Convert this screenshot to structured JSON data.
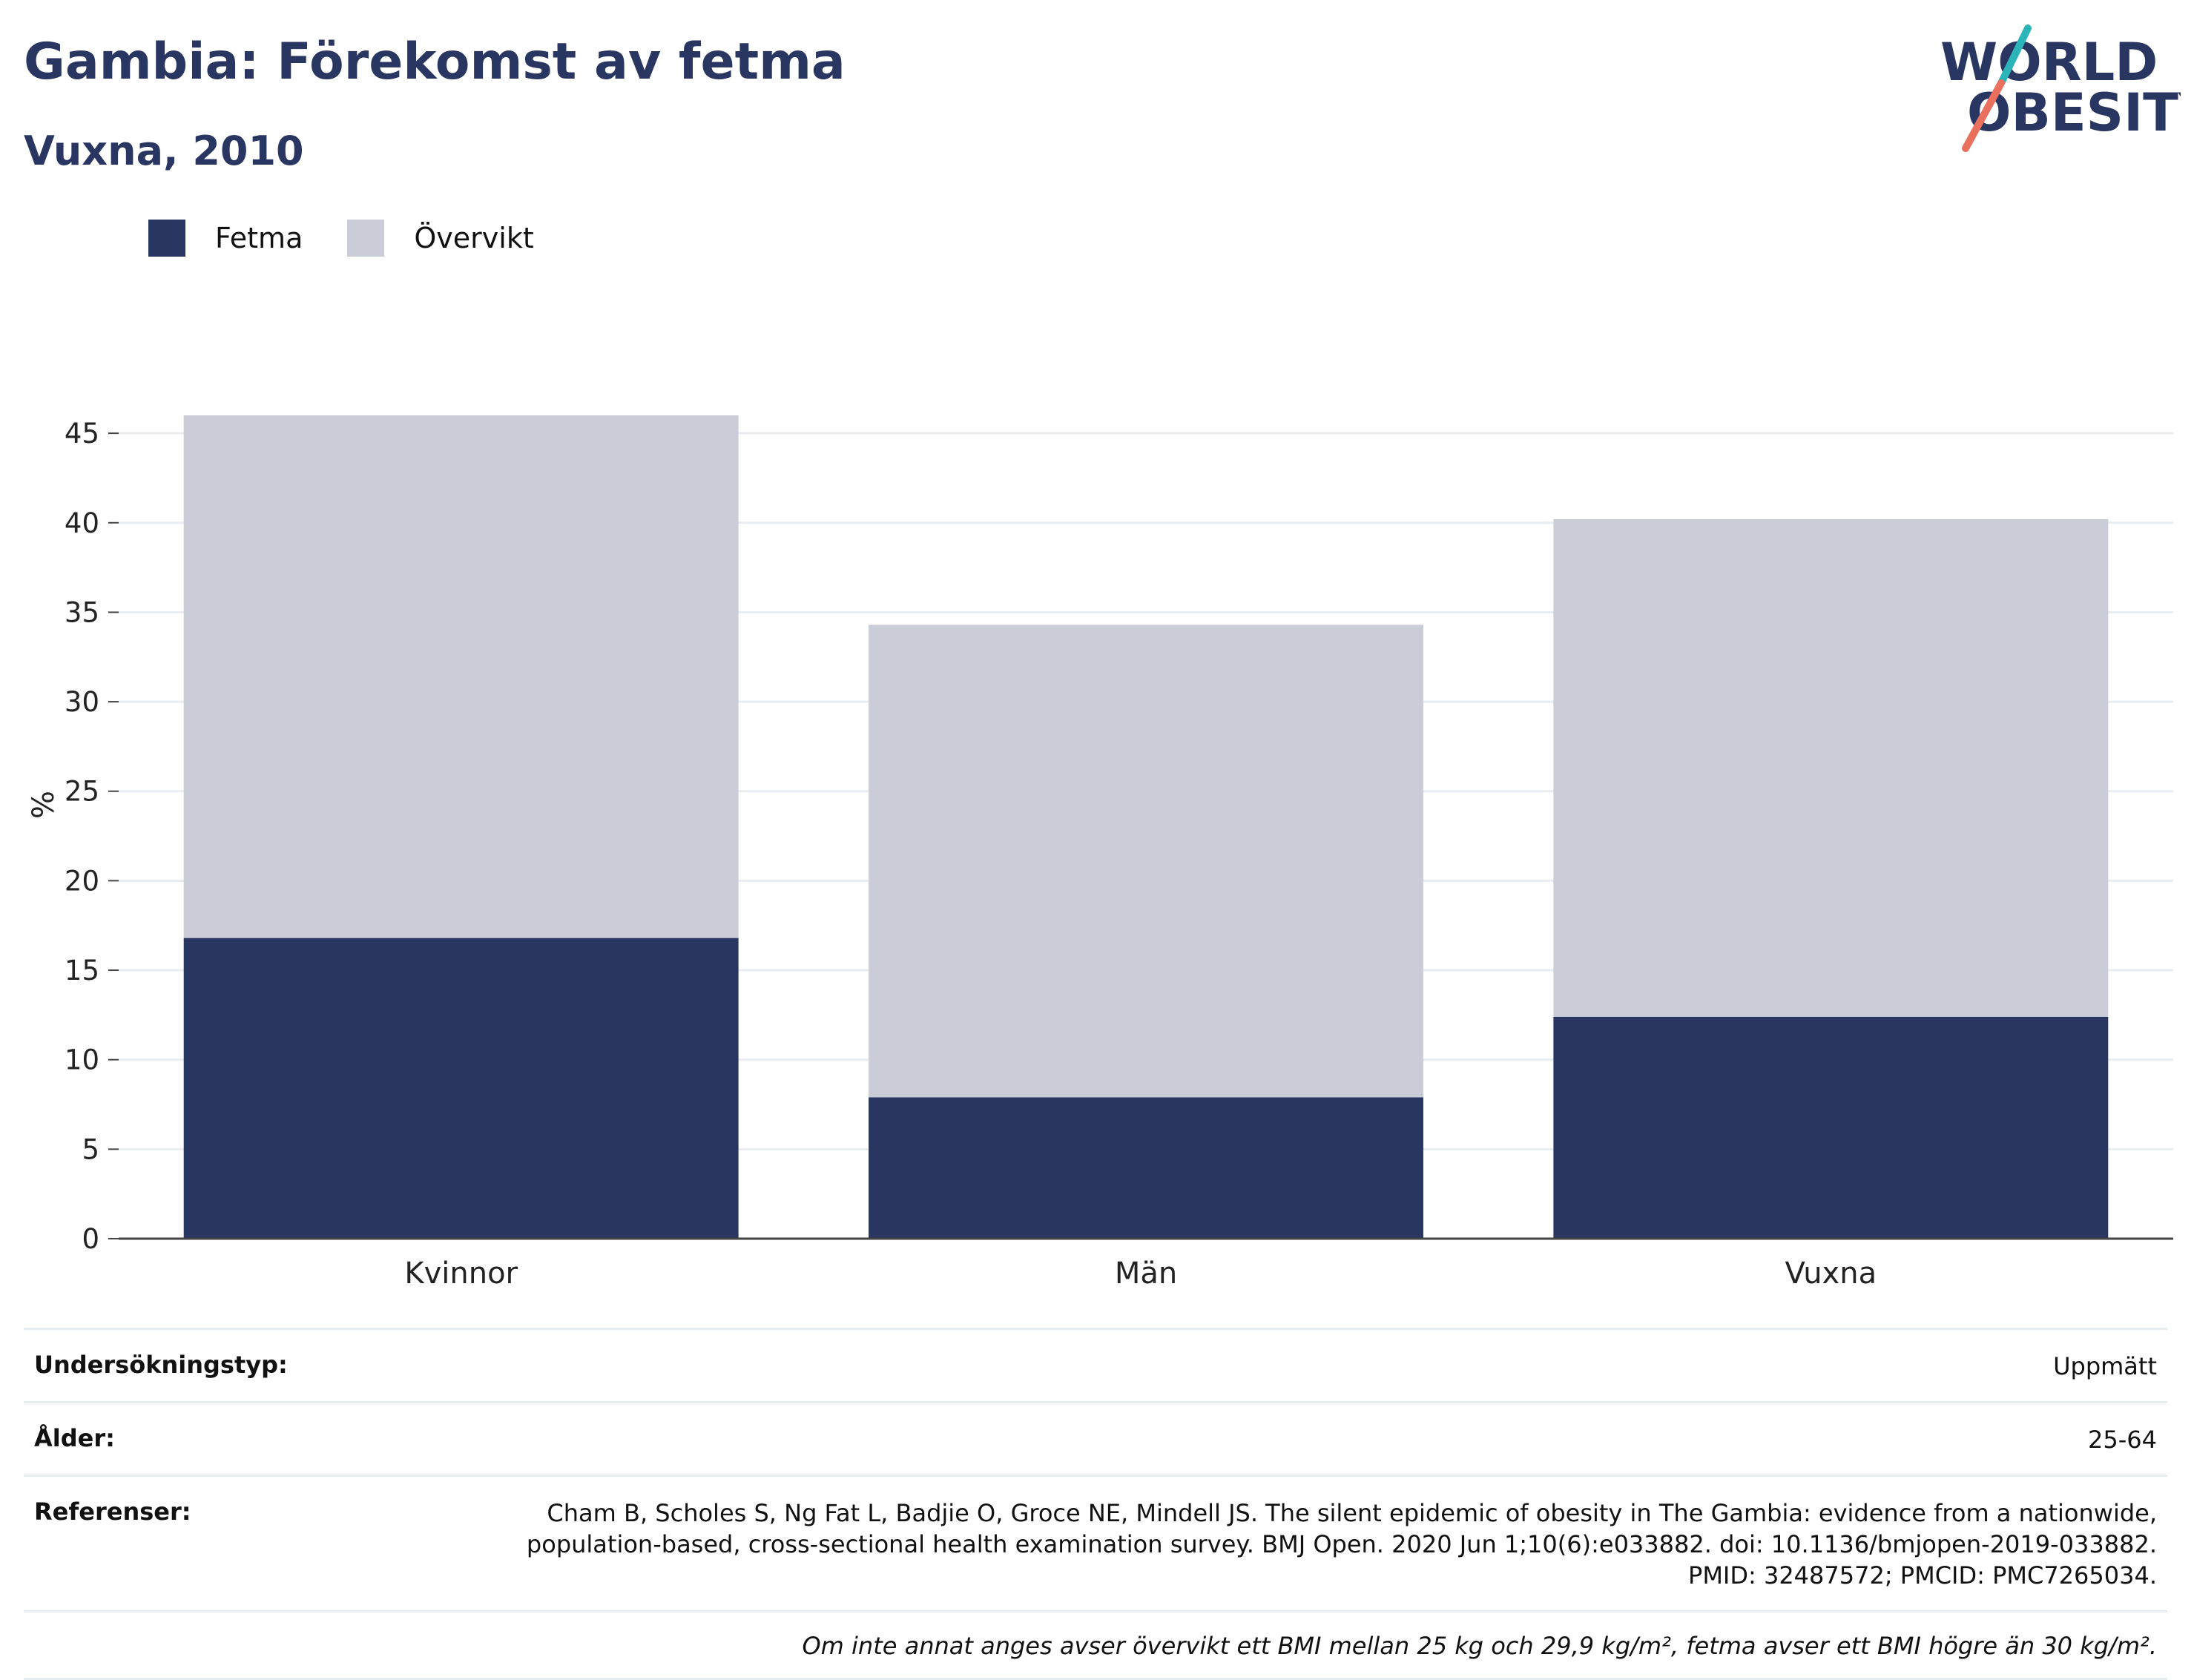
{
  "header": {
    "title": "Gambia: Förekomst av fetma",
    "subtitle": "Vuxna, 2010"
  },
  "logo": {
    "line1": "WORLD",
    "line2": "OBESITY",
    "colors": {
      "text": "#2a3662",
      "slash_top": "#2bb5b8",
      "slash_bottom": "#e8705d"
    }
  },
  "legend": {
    "items": [
      {
        "label": "Fetma",
        "color": "#2a3662"
      },
      {
        "label": "Övervikt",
        "color": "#cacdd8"
      }
    ]
  },
  "chart_data": {
    "type": "bar",
    "stacked": true,
    "categories": [
      "Kvinnor",
      "Män",
      "Vuxna"
    ],
    "series": [
      {
        "name": "Fetma",
        "color": "#2a3662",
        "values": [
          16.8,
          7.9,
          12.4
        ]
      },
      {
        "name": "Övervikt",
        "color": "#cacdd8",
        "values": [
          29.2,
          26.4,
          27.8
        ]
      }
    ],
    "ylabel": "%",
    "ylim": [
      0,
      46
    ],
    "yticks": [
      0,
      5,
      10,
      15,
      20,
      25,
      30,
      35,
      40,
      45
    ],
    "grid": true,
    "legend_position": "top-left"
  },
  "info": {
    "survey_type_label": "Undersökningstyp:",
    "survey_type_value": "Uppmätt",
    "age_label": "Ålder:",
    "age_value": "25-64",
    "references_label": "Referenser:",
    "references_value": "Cham B, Scholes S, Ng Fat L, Badjie O, Groce NE, Mindell JS. The silent epidemic of obesity in The Gambia: evidence from a nationwide, population-based, cross-sectional health examination survey. BMJ Open. 2020 Jun 1;10(6):e033882. doi: 10.1136/bmjopen-2019-033882. PMID: 32487572; PMCID: PMC7265034.",
    "note": "Om inte annat anges avser övervikt ett BMI mellan 25 kg och 29,9 kg/m², fetma avser ett BMI högre än 30 kg/m²."
  }
}
